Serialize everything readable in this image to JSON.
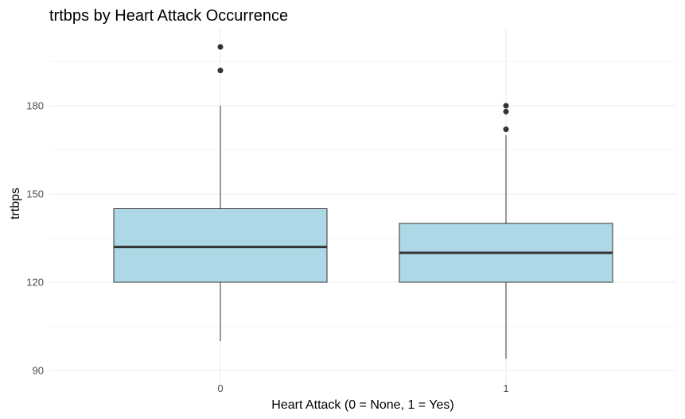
{
  "chart_data": {
    "type": "box",
    "title": "trtbps by Heart Attack Occurrence",
    "xlabel": "Heart Attack (0 = None, 1 = Yes)",
    "ylabel": "trtbps",
    "categories": [
      "0",
      "1"
    ],
    "yticks": [
      90,
      120,
      150,
      180
    ],
    "ylim": [
      90,
      200
    ],
    "grid": true,
    "legend": "none",
    "box_fill": "#add8e6",
    "box_stroke": "#333333",
    "boxes": [
      {
        "category": "0",
        "whisker_low": 100,
        "q1": 120,
        "median": 132,
        "q3": 145,
        "whisker_high": 180,
        "outliers": [
          192,
          200
        ]
      },
      {
        "category": "1",
        "whisker_low": 94,
        "q1": 120,
        "median": 130,
        "q3": 140,
        "whisker_high": 170,
        "outliers": [
          172,
          178,
          180
        ]
      }
    ]
  }
}
